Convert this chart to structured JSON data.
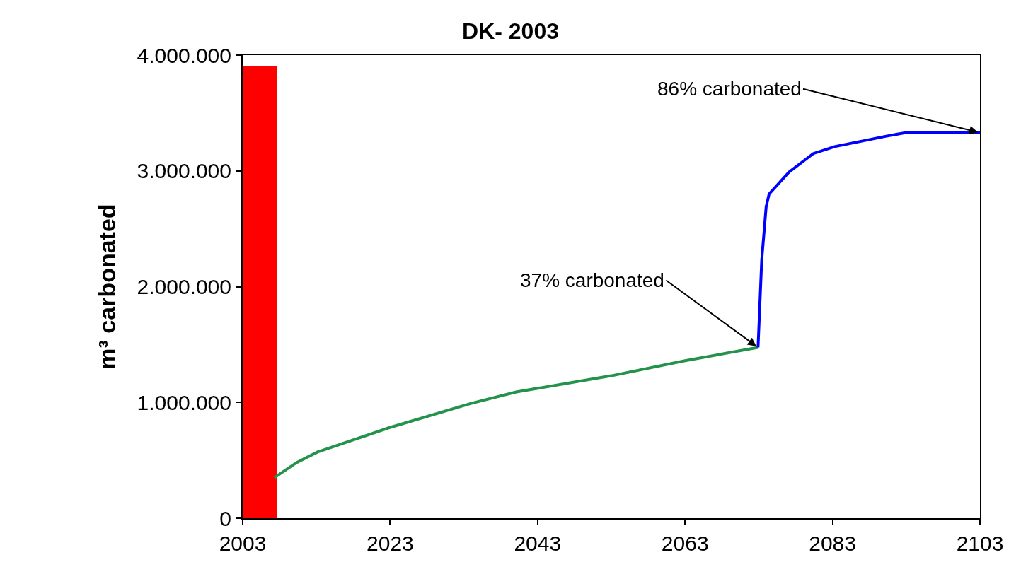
{
  "chart_data": {
    "type": "line",
    "title": "DK- 2003",
    "ylabel": "m³ carbonated",
    "xlim": [
      2003,
      2103
    ],
    "xticks": [
      2003,
      2023,
      2043,
      2063,
      2083,
      2103
    ],
    "ylim": [
      0,
      4000000
    ],
    "yticks": [
      {
        "value": 0,
        "label": "0"
      },
      {
        "value": 1000000,
        "label": "1.000.000"
      },
      {
        "value": 2000000,
        "label": "2.000.000"
      },
      {
        "value": 3000000,
        "label": "3.000.000"
      },
      {
        "value": 4000000,
        "label": "4.000.000"
      }
    ],
    "marker": "none",
    "line_style": "solid",
    "series": [
      {
        "type": "bar",
        "color": "#ff0000",
        "x": [
          2005
        ],
        "values": [
          3910000
        ]
      },
      {
        "color": "#23924a",
        "x": [
          2007.3,
          2010.3,
          2013.1,
          2022.8,
          2033.9,
          2040.1,
          2053,
          2063,
          2072.9
        ],
        "values": [
          350000,
          480000,
          570000,
          780000,
          990000,
          1090000,
          1230000,
          1360000,
          1475000
        ]
      },
      {
        "color": "#0000ff",
        "x": [
          2072.9,
          2073.4,
          2074.0,
          2074.4,
          2077.1,
          2080.4,
          2083.3,
          2090.3,
          2092.9,
          2103
        ],
        "values": [
          1475000,
          2230000,
          2690000,
          2800000,
          2990000,
          3150000,
          3210000,
          3300000,
          3330000,
          3330000
        ]
      }
    ],
    "annotations": [
      {
        "text": "37% carbonated",
        "x": 2072.9,
        "y": 1475000
      },
      {
        "text": "86% carbonated",
        "x": 2103,
        "y": 3330000
      }
    ]
  }
}
